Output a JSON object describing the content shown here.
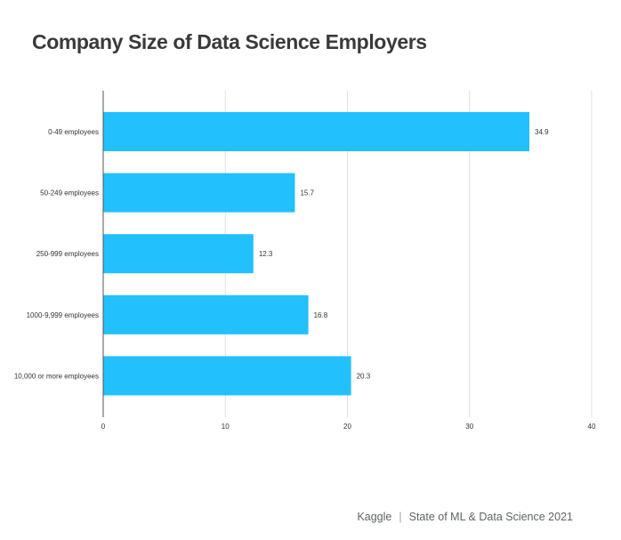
{
  "title": "Company Size of Data Science Employers",
  "footer": {
    "brand": "Kaggle",
    "separator": "|",
    "report": "State of ML & Data Science 2021"
  },
  "chart_data": {
    "type": "bar",
    "orientation": "horizontal",
    "title": "Company Size of Data Science Employers",
    "categories": [
      "0-49 employees",
      "50-249 employees",
      "250-999 employees",
      "1000-9,999 employees",
      "10,000 or more employees"
    ],
    "values": [
      34.9,
      15.7,
      12.3,
      16.8,
      20.3
    ],
    "data_labels": [
      "34.9",
      "15.7",
      "12.3",
      "16.8",
      "20.3"
    ],
    "xlim": [
      0,
      40
    ],
    "xticks": [
      0,
      10,
      20,
      30,
      40
    ],
    "xlabel": "",
    "ylabel": "",
    "grid": true,
    "bar_color": "#22c0fd",
    "gridline_color": "#e0e0e0",
    "axis_color": "#555555"
  }
}
